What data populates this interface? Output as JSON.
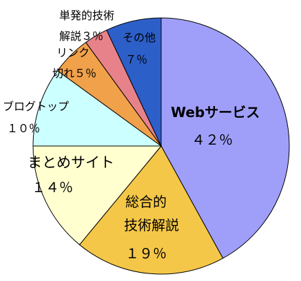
{
  "chart_data": {
    "type": "pie",
    "title": "",
    "start": "top, clockwise",
    "slices": [
      {
        "label": "Webサービス",
        "value": 42,
        "pct_text": "４２％",
        "color": "#9F9FFA"
      },
      {
        "label": "総合的技術解説",
        "value": 19,
        "pct_text": "１９％",
        "color": "#F5C748"
      },
      {
        "label": "まとめサイト",
        "value": 14,
        "pct_text": "１４％",
        "color": "#FFFFD0"
      },
      {
        "label": "ブログトップ",
        "value": 10,
        "pct_text": "１０％",
        "color": "#CCFFFF"
      },
      {
        "label": "リンク切れ",
        "value": 5,
        "pct_text": "５％",
        "color": "#F1A14A"
      },
      {
        "label": "単発的技術解説",
        "value": 3,
        "pct_text": "３％",
        "color": "#E8828A"
      },
      {
        "label": "その他",
        "value": 7,
        "pct_text": "７％",
        "color": "#2D5FC8"
      }
    ]
  },
  "labels": {
    "web_line1": "Webサービス",
    "web_line2": "４２％",
    "sogo_line1": "総合的",
    "sogo_line2": "技術解説",
    "sogo_line3": "１９％",
    "matome_line1": "まとめサイト",
    "matome_line2": "１４％",
    "blog_line1": "ブログトップ",
    "blog_line2": "１０％",
    "link_line1": "リンク",
    "link_line2": "切れ５％",
    "tanpatsu_line1": "単発的技術",
    "tanpatsu_line2": "解説３％",
    "sonota_line1": "その他",
    "sonota_line2": "７％"
  }
}
